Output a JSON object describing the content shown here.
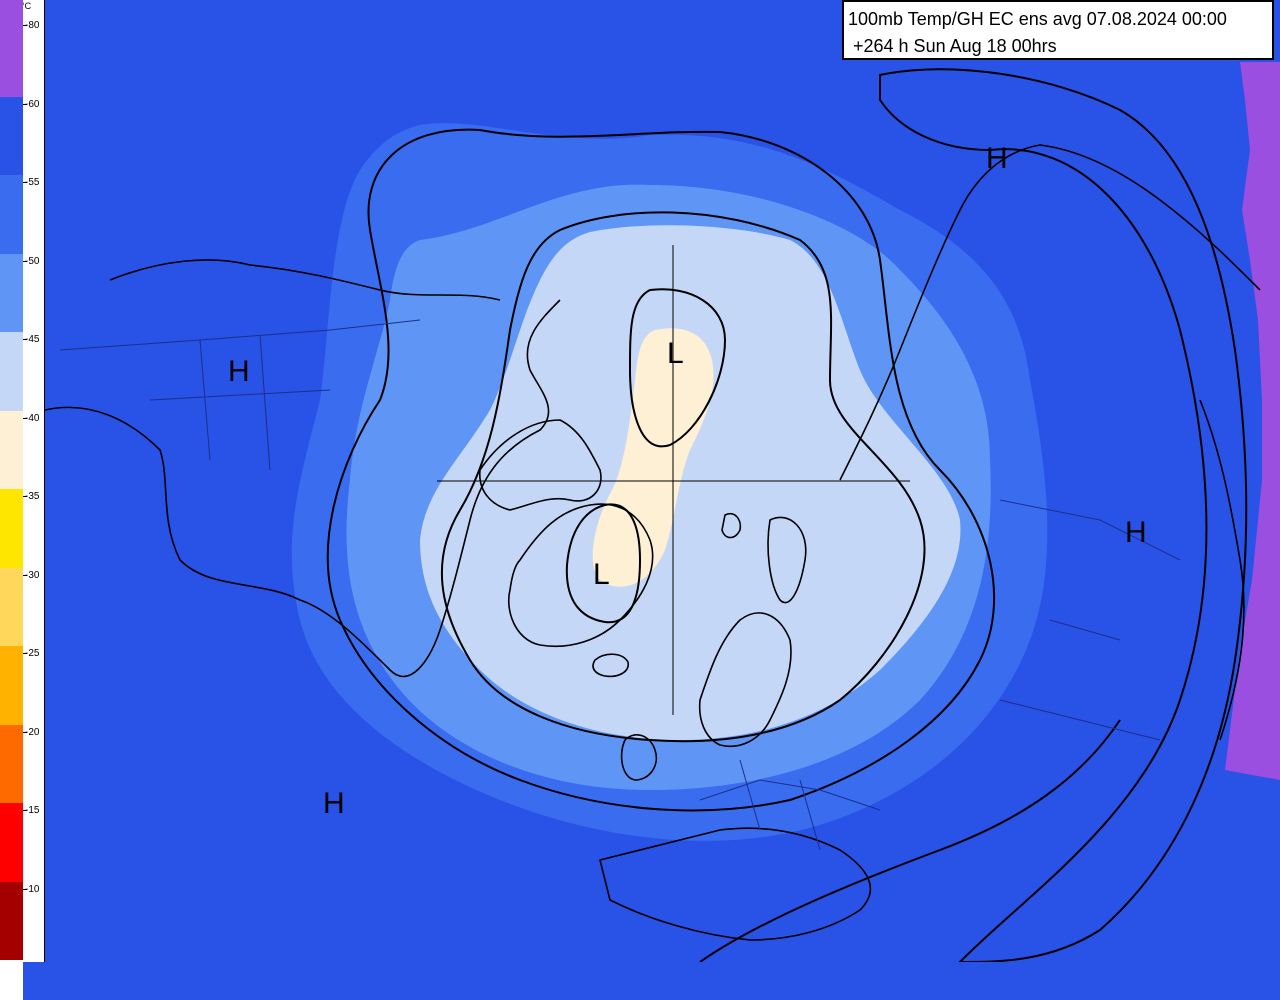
{
  "title": {
    "line1": "100mb Temp/GH  EC ens avg 07.08.2024 00:00",
    "line2": "+264 h Sun Aug 18 00hrs"
  },
  "legend": {
    "unit": "°C",
    "levels": [
      {
        "label": "-80",
        "color": "#9b4fe0"
      },
      {
        "label": "-60",
        "color": "#2952e6"
      },
      {
        "label": "-55",
        "color": "#3a6cf0"
      },
      {
        "label": "-50",
        "color": "#5f95f5"
      },
      {
        "label": "-45",
        "color": "#c5d7f6"
      },
      {
        "label": "-40",
        "color": "#fdf0d5"
      },
      {
        "label": "-35",
        "color": "#ffe600"
      },
      {
        "label": "-30",
        "color": "#ffd75a"
      },
      {
        "label": "-25",
        "color": "#ffb300"
      },
      {
        "label": "-20",
        "color": "#ff6a00"
      },
      {
        "label": "-15",
        "color": "#ff0000"
      },
      {
        "label": "-10",
        "color": "#a50000"
      }
    ],
    "bottom_color": "#ffffff"
  },
  "pressure_labels": [
    {
      "text": "H"
    },
    {
      "text": "H"
    },
    {
      "text": "H"
    },
    {
      "text": "H"
    },
    {
      "text": "L"
    },
    {
      "text": "L"
    }
  ],
  "colors": {
    "purple": "#9b4fe0",
    "bg": "#2952e6",
    "band55": "#3a6cf0",
    "band50": "#5f95f5",
    "band45": "#c5d7f6",
    "band40": "#fdf0d5",
    "coast": "#000000",
    "border": "#1c2f8a"
  }
}
